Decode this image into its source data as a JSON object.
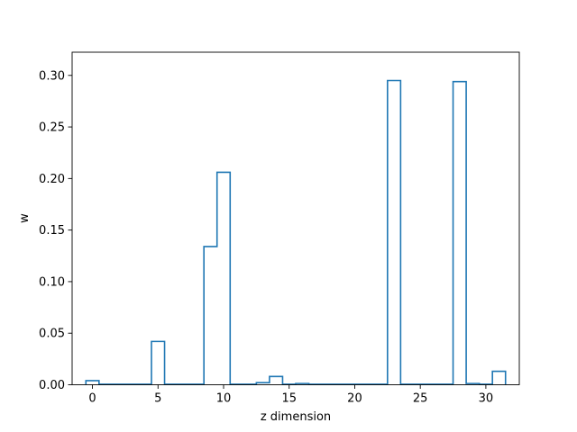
{
  "chart_data": {
    "type": "bar",
    "style": "step-histogram",
    "xlabel": "z dimension",
    "ylabel": "w",
    "xlim": [
      -1.55,
      32.55
    ],
    "ylim": [
      0,
      0.3225
    ],
    "xticks": [
      0,
      5,
      10,
      15,
      20,
      25,
      30
    ],
    "yticks": [
      0.0,
      0.05,
      0.1,
      0.15,
      0.2,
      0.25,
      0.3
    ],
    "grid": false,
    "bin_width": 1,
    "x": [
      0,
      1,
      2,
      3,
      4,
      5,
      6,
      7,
      8,
      9,
      10,
      11,
      12,
      13,
      14,
      15,
      16,
      17,
      18,
      19,
      20,
      21,
      22,
      23,
      24,
      25,
      26,
      27,
      28,
      29,
      30,
      31
    ],
    "values": [
      0.004,
      0.0005,
      0.0005,
      0.0005,
      0.0005,
      0.042,
      0.0005,
      0.0005,
      0.0005,
      0.134,
      0.206,
      0.0005,
      0.0005,
      0.002,
      0.008,
      0.0005,
      0.0012,
      0.0005,
      0.0005,
      0.0005,
      0.0005,
      0.0005,
      0.0005,
      0.295,
      0.0005,
      0.0005,
      0.0005,
      0.0005,
      0.294,
      0.0012,
      0.0005,
      0.013
    ],
    "colors": {
      "line": "#1f77b4",
      "axes": "#000000"
    }
  }
}
